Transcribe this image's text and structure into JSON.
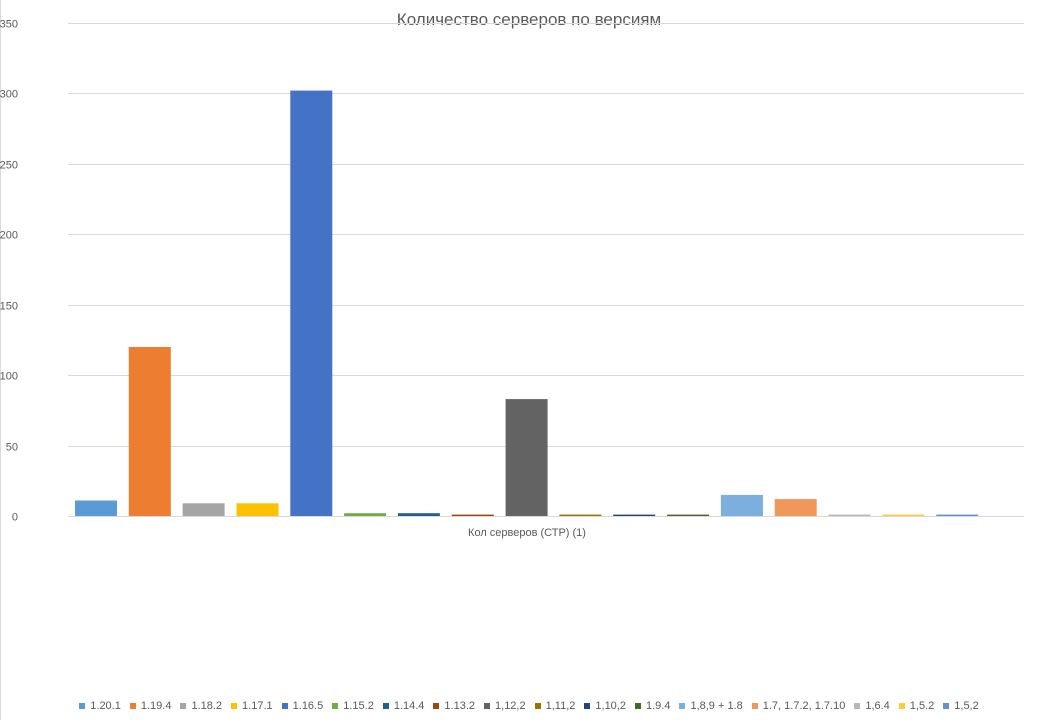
{
  "chart_data": {
    "type": "bar",
    "title": "Количество серверов по версиям",
    "xlabel": "Кол серверов (СТР) (1)",
    "ylabel": "",
    "ylim": [
      0,
      350
    ],
    "yticks": [
      0,
      50,
      100,
      150,
      200,
      250,
      300,
      350
    ],
    "ytick_labels": [
      "0",
      "50",
      "100",
      "150",
      "200",
      "250",
      "300",
      "350"
    ],
    "grid": true,
    "legend_position": "bottom",
    "categories": [
      "Кол серверов (СТР) (1)"
    ],
    "series": [
      {
        "name": "1.20.1",
        "values": [
          11
        ],
        "color": "#5b9bd5"
      },
      {
        "name": "1.19.4",
        "values": [
          120
        ],
        "color": "#ed7d31"
      },
      {
        "name": "1.18.2",
        "values": [
          9
        ],
        "color": "#a5a5a5"
      },
      {
        "name": "1.17.1",
        "values": [
          9
        ],
        "color": "#ffc000"
      },
      {
        "name": "1.16.5",
        "values": [
          302
        ],
        "color": "#4472c4"
      },
      {
        "name": "1.15.2",
        "values": [
          2
        ],
        "color": "#70ad47"
      },
      {
        "name": "1.14.4",
        "values": [
          2
        ],
        "color": "#255e91"
      },
      {
        "name": "1.13.2",
        "values": [
          1
        ],
        "color": "#9e480e"
      },
      {
        "name": "1,12,2",
        "values": [
          83
        ],
        "color": "#636363"
      },
      {
        "name": "1,11,2",
        "values": [
          1
        ],
        "color": "#997300"
      },
      {
        "name": "1,10,2",
        "values": [
          1
        ],
        "color": "#264478"
      },
      {
        "name": "1.9.4",
        "values": [
          1
        ],
        "color": "#43682b"
      },
      {
        "name": "1,8,9 + 1.8",
        "values": [
          15
        ],
        "color": "#7cafdd"
      },
      {
        "name": "1.7, 1.7.2, 1.7.10",
        "values": [
          12
        ],
        "color": "#f1975a"
      },
      {
        "name": "1,6.4",
        "values": [
          1
        ],
        "color": "#b7b7b7"
      },
      {
        "name": "1,5.2",
        "values": [
          1
        ],
        "color": "#ffcd33"
      },
      {
        "name": "1,5,2",
        "values": [
          1
        ],
        "color": "#698ed0"
      }
    ]
  }
}
